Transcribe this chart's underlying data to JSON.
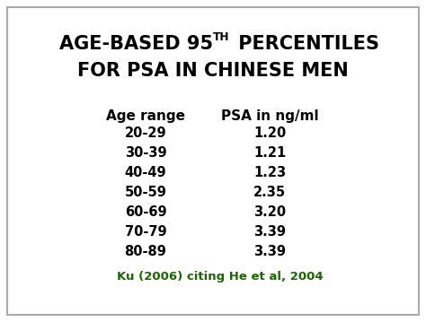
{
  "title_line1": "AGE-BASED 95",
  "title_superscript": "TH",
  "title_line1_suffix": " PERCENTILES",
  "title_line2": "FOR PSA IN CHINESE MEN",
  "col_header_left": "Age range",
  "col_header_right": "PSA in ng/ml",
  "age_ranges": [
    "20-29",
    "30-39",
    "40-49",
    "50-59",
    "60-69",
    "70-79",
    "80-89"
  ],
  "psa_values": [
    "1.20",
    "1.21",
    "1.23",
    "2.35",
    "3.20",
    "3.39",
    "3.39"
  ],
  "citation": "Ku (2006) citing He et al, 2004",
  "bg_color": "#ffffff",
  "border_color": "#aaaaaa",
  "title_color": "#000000",
  "data_color": "#000000",
  "citation_color": "#1a6600",
  "title_fontsize": 15,
  "header_fontsize": 11,
  "data_fontsize": 10.5,
  "citation_fontsize": 9.5
}
